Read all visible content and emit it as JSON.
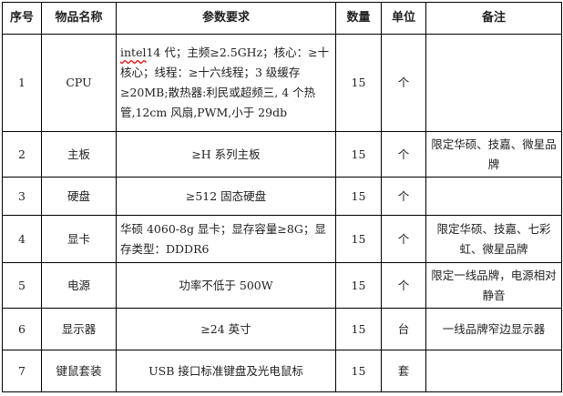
{
  "headers": [
    "序号",
    "物品名称",
    "参数要求",
    "数量",
    "单位",
    "备注"
  ],
  "rows": [
    {
      "no": "1",
      "name": "CPU",
      "spec_prefix": "intel",
      "spec": "14 代；主频≥2.5GHz；核心：≥十核心；线程：≥十六线程；3 级缓存≥20MB;散热器:利民或超频三, 4 个热管,12cm 风扇,PWM,小于 29db",
      "qty": "15",
      "unit": "个",
      "note": ""
    },
    {
      "no": "2",
      "name": "主板",
      "spec_prefix": "",
      "spec": "≥H 系列主板",
      "qty": "15",
      "unit": "个",
      "note": "限定华硕、技嘉、微星品牌"
    },
    {
      "no": "3",
      "name": "硬盘",
      "spec_prefix": "",
      "spec": "≥512 固态硬盘",
      "qty": "15",
      "unit": "个",
      "note": ""
    },
    {
      "no": "4",
      "name": "显卡",
      "spec_prefix": "",
      "spec": "华硕 4060-8g 显卡；显存容量≥8G；显存类型：DDDR6",
      "qty": "15",
      "unit": "个",
      "note": "限定华硕、技嘉、七彩虹、微星品牌"
    },
    {
      "no": "5",
      "name": "电源",
      "spec_prefix": "",
      "spec": "功率不低于 500W",
      "qty": "15",
      "unit": "个",
      "note": "限定一线品牌，电源相对静音"
    },
    {
      "no": "6",
      "name": "显示器",
      "spec_prefix": "",
      "spec": "≥24 英寸",
      "qty": "15",
      "unit": "台",
      "note": "一线品牌窄边显示器"
    },
    {
      "no": "7",
      "name": "键鼠套装",
      "spec_prefix": "",
      "spec": "USB 接口标准键盘及光电鼠标",
      "qty": "15",
      "unit": "套",
      "note": ""
    }
  ]
}
